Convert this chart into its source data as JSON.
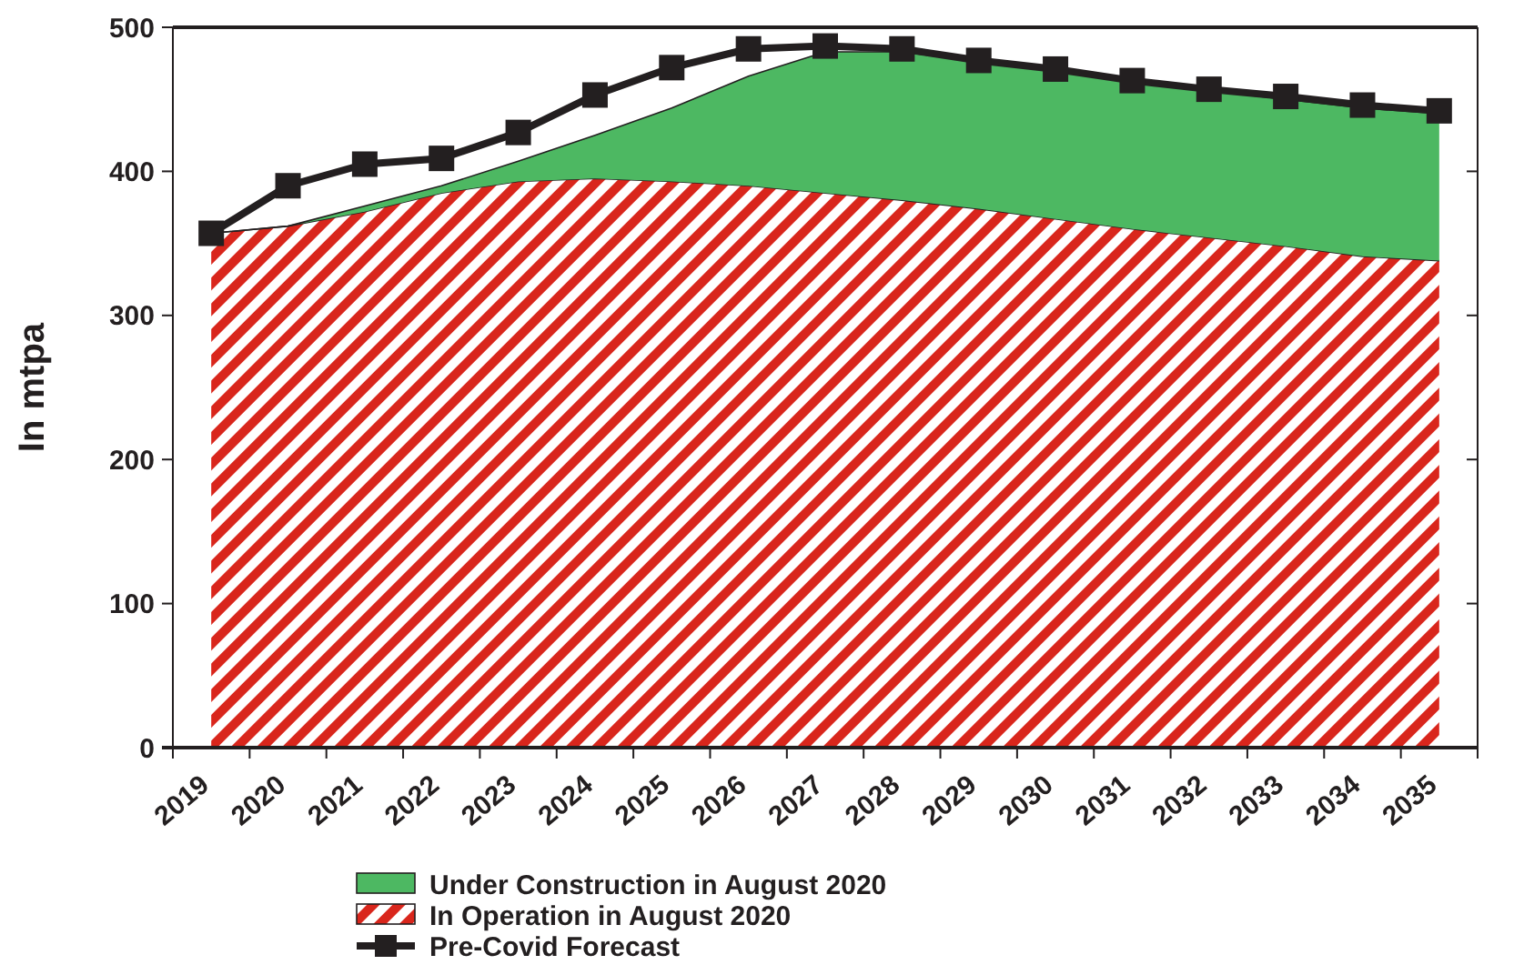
{
  "chart_data": {
    "type": "area",
    "stacked": true,
    "ylabel": "In mtpa",
    "categories": [
      "2019",
      "2020",
      "2021",
      "2022",
      "2023",
      "2024",
      "2025",
      "2026",
      "2027",
      "2028",
      "2029",
      "2030",
      "2031",
      "2032",
      "2033",
      "2034",
      "2035"
    ],
    "ylim": [
      0,
      500
    ],
    "yticks": [
      0,
      100,
      200,
      300,
      400,
      500
    ],
    "grid": false,
    "legend": "bottom",
    "series": [
      {
        "name": "In Operation in August 2020",
        "color": "#d9261c",
        "values": [
          357,
          362,
          372,
          385,
          393,
          395,
          393,
          390,
          385,
          380,
          374,
          367,
          360,
          354,
          348,
          341,
          338
        ]
      },
      {
        "name": "Under Construction in August 2020",
        "color": "#4db862",
        "values": [
          0,
          0,
          4,
          5,
          14,
          30,
          51,
          76,
          98,
          103,
          102,
          103,
          102,
          102,
          102,
          103,
          102
        ]
      },
      {
        "name": "Pre-Covid Forecast",
        "type": "line",
        "color": "#231f20",
        "marker": "square",
        "line_style": "solid",
        "values": [
          357,
          390,
          405,
          409,
          427,
          453,
          472,
          485,
          487,
          485,
          477,
          471,
          463,
          457,
          452,
          446,
          442
        ]
      }
    ]
  }
}
